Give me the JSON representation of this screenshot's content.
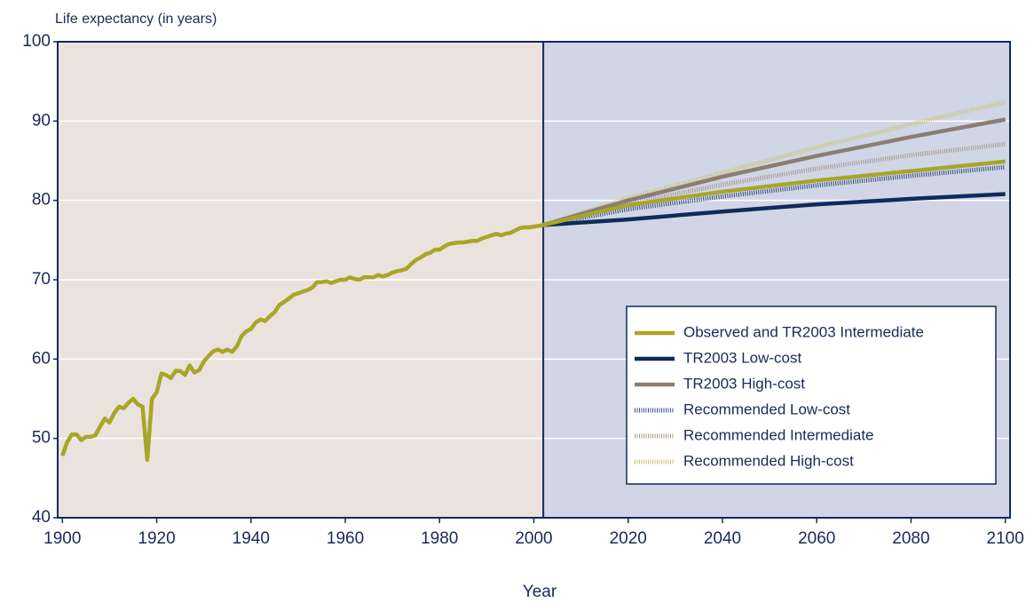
{
  "chart_data": {
    "type": "line",
    "y_label": "Life expectancy (in years)",
    "x_label": "Year",
    "xlim": [
      1899,
      2101
    ],
    "xticks": [
      1900,
      1920,
      1940,
      1960,
      1980,
      2000,
      2020,
      2040,
      2060,
      2080,
      2100
    ],
    "ylim": [
      40,
      100
    ],
    "yticks": [
      40,
      50,
      60,
      70,
      80,
      90,
      100
    ],
    "grid": true,
    "legend": "lower right",
    "projection_start": 2002,
    "series": [
      {
        "name": "Observed and TR2003 Intermediate",
        "color": "#a9a52a",
        "dash": "solid",
        "x": [
          1900,
          1901,
          1902,
          1903,
          1904,
          1905,
          1906,
          1907,
          1908,
          1909,
          1910,
          1911,
          1912,
          1913,
          1914,
          1915,
          1916,
          1917,
          1918,
          1919,
          1920,
          1921,
          1922,
          1923,
          1924,
          1925,
          1926,
          1927,
          1928,
          1929,
          1930,
          1931,
          1932,
          1933,
          1934,
          1935,
          1936,
          1937,
          1938,
          1939,
          1940,
          1941,
          1942,
          1943,
          1944,
          1945,
          1946,
          1947,
          1948,
          1949,
          1950,
          1951,
          1952,
          1953,
          1954,
          1955,
          1956,
          1957,
          1958,
          1959,
          1960,
          1961,
          1962,
          1963,
          1964,
          1965,
          1966,
          1967,
          1968,
          1969,
          1970,
          1971,
          1972,
          1973,
          1974,
          1975,
          1976,
          1977,
          1978,
          1979,
          1980,
          1981,
          1982,
          1983,
          1984,
          1985,
          1986,
          1987,
          1988,
          1989,
          1990,
          1991,
          1992,
          1993,
          1994,
          1995,
          1996,
          1997,
          1998,
          1999,
          2000,
          2001,
          2002,
          2020,
          2040,
          2060,
          2080,
          2100
        ],
        "values": [
          47.8,
          49.5,
          50.5,
          50.5,
          49.8,
          50.2,
          50.2,
          50.4,
          51.5,
          52.5,
          52.0,
          53.2,
          54.0,
          53.8,
          54.5,
          55.0,
          54.3,
          54.0,
          47.3,
          55.0,
          55.8,
          58.2,
          58.0,
          57.6,
          58.5,
          58.5,
          58.0,
          59.2,
          58.3,
          58.6,
          59.7,
          60.4,
          61.0,
          61.2,
          60.9,
          61.2,
          60.9,
          61.6,
          62.9,
          63.5,
          63.8,
          64.6,
          65.0,
          64.8,
          65.4,
          65.9,
          66.8,
          67.2,
          67.6,
          68.1,
          68.3,
          68.5,
          68.7,
          69.0,
          69.7,
          69.7,
          69.8,
          69.6,
          69.8,
          70.0,
          70.0,
          70.3,
          70.1,
          70.0,
          70.3,
          70.3,
          70.3,
          70.6,
          70.4,
          70.6,
          70.9,
          71.1,
          71.2,
          71.4,
          72.0,
          72.5,
          72.8,
          73.2,
          73.4,
          73.8,
          73.8,
          74.2,
          74.5,
          74.6,
          74.7,
          74.7,
          74.8,
          74.9,
          74.9,
          75.2,
          75.4,
          75.6,
          75.8,
          75.6,
          75.8,
          75.9,
          76.2,
          76.5,
          76.6,
          76.6,
          76.7,
          76.8,
          76.9,
          79.4,
          81.1,
          82.5,
          83.7,
          84.9
        ]
      },
      {
        "name": "TR2003 Low-cost",
        "color": "#0f2a5c",
        "dash": "solid",
        "x": [
          2002,
          2020,
          2040,
          2060,
          2080,
          2100
        ],
        "values": [
          76.9,
          77.6,
          78.6,
          79.5,
          80.2,
          80.8
        ]
      },
      {
        "name": "TR2003 High-cost",
        "color": "#8b7d72",
        "dash": "solid",
        "x": [
          2002,
          2020,
          2040,
          2060,
          2080,
          2100
        ],
        "values": [
          76.9,
          80.0,
          83.0,
          85.6,
          88.0,
          90.2
        ]
      },
      {
        "name": "Recommended Low-cost",
        "color": "#3a4f80",
        "dash": "dotted",
        "x": [
          2002,
          2020,
          2040,
          2060,
          2080,
          2100
        ],
        "values": [
          76.9,
          78.9,
          80.5,
          81.9,
          83.1,
          84.2
        ]
      },
      {
        "name": "Recommended Intermediate",
        "color": "#a8998e",
        "dash": "dotted",
        "x": [
          2002,
          2020,
          2040,
          2060,
          2080,
          2100
        ],
        "values": [
          76.9,
          79.6,
          82.0,
          84.0,
          85.7,
          87.1
        ]
      },
      {
        "name": "Recommended High-cost",
        "color": "#c9c46e",
        "dash": "dotted",
        "x": [
          2002,
          2020,
          2040,
          2060,
          2080,
          2100
        ],
        "values": [
          76.9,
          80.3,
          83.5,
          86.7,
          89.6,
          92.4
        ]
      }
    ]
  }
}
